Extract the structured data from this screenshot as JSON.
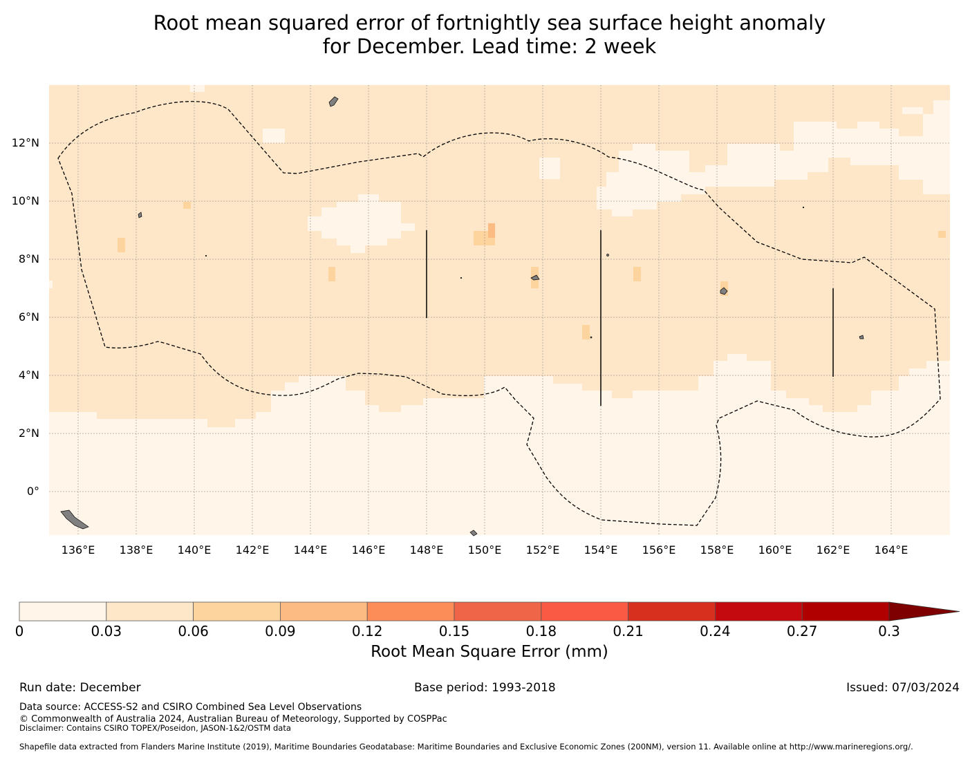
{
  "title": {
    "line1": "Root mean squared error of fortnightly sea surface height anomaly",
    "line2": "for December. Lead time: 2 week"
  },
  "map": {
    "lon_range": [
      135,
      166
    ],
    "lat_range": [
      -1.5,
      14
    ],
    "lon_ticks": [
      "136°E",
      "138°E",
      "140°E",
      "142°E",
      "144°E",
      "146°E",
      "148°E",
      "150°E",
      "152°E",
      "154°E",
      "156°E",
      "158°E",
      "160°E",
      "162°E",
      "164°E"
    ],
    "lat_ticks": [
      "12°N",
      "10°N",
      "8°N",
      "6°N",
      "4°N",
      "2°N",
      "0°"
    ],
    "grid": true,
    "boundary": "dashed EEZ outline",
    "land_color": "#808080"
  },
  "colorbar": {
    "label": "Root Mean Square Error (mm)",
    "ticks": [
      "0",
      "0.03",
      "0.06",
      "0.09",
      "0.12",
      "0.15",
      "0.18",
      "0.21",
      "0.24",
      "0.27",
      "0.3"
    ],
    "colors": [
      "#fff5e8",
      "#fee7c8",
      "#fdd49e",
      "#fdbb84",
      "#fc8d59",
      "#ef6548",
      "#fa5a43",
      "#d7301f",
      "#c40a0f",
      "#b00000"
    ],
    "extend_color": "#7f0000"
  },
  "footer": {
    "run_date": "Run date: December",
    "base_period": "Base period: 1993-2018",
    "issued": "Issued: 07/03/2024",
    "data_source": "Data source: ACCESS-S2 and CSIRO Combined Sea Level Observations",
    "copyright": "© Commonwealth of Australia 2024, Australian Bureau of Meteorology, Supported by COSPPac",
    "disclaimer": "Disclaimer: Contains CSIRO TOPEX/Poseidon, JASON-1&2/OSTM data",
    "shapefile": "Shapefile data extracted from Flanders Marine Institute (2019), Maritime Boundaries Geodatabase: Maritime Boundaries and Exclusive Economic Zones (200NM), version 11. Available online at http://www.marineregions.org/."
  }
}
